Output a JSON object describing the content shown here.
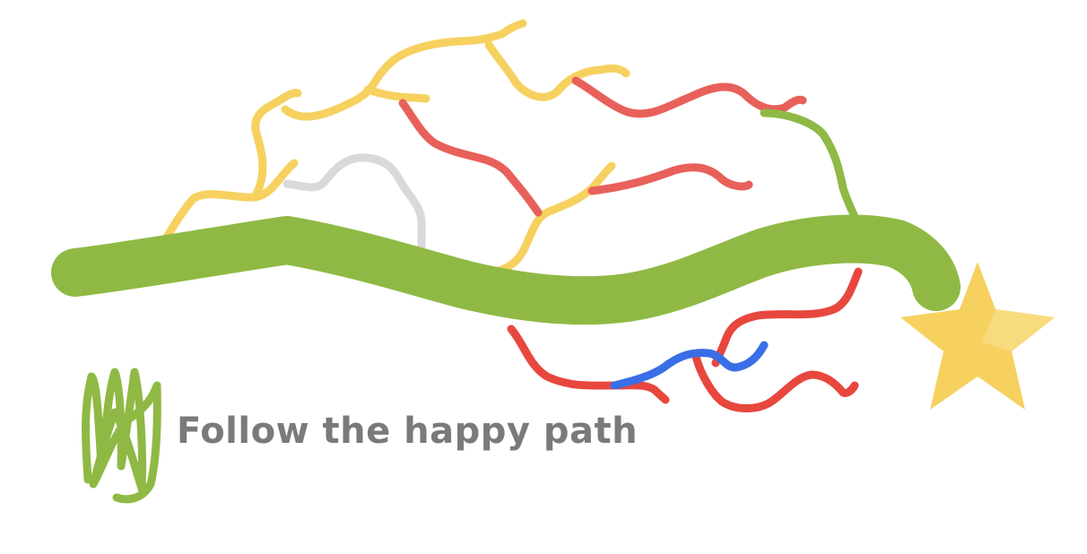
{
  "caption": "Follow the happy path",
  "colors": {
    "happy_path": "#8fb944",
    "yellow_path": "#f6d160",
    "red_path": "#e8605a",
    "bright_red_path": "#e8473e",
    "blue_path": "#3a6ee6",
    "grey_path": "#d9d9d9",
    "star": "#f6d15f",
    "star_shade": "#f8db7c",
    "caption_text": "#7a7a7a"
  },
  "icons": [
    "star-icon",
    "legend-scribble-icon"
  ]
}
